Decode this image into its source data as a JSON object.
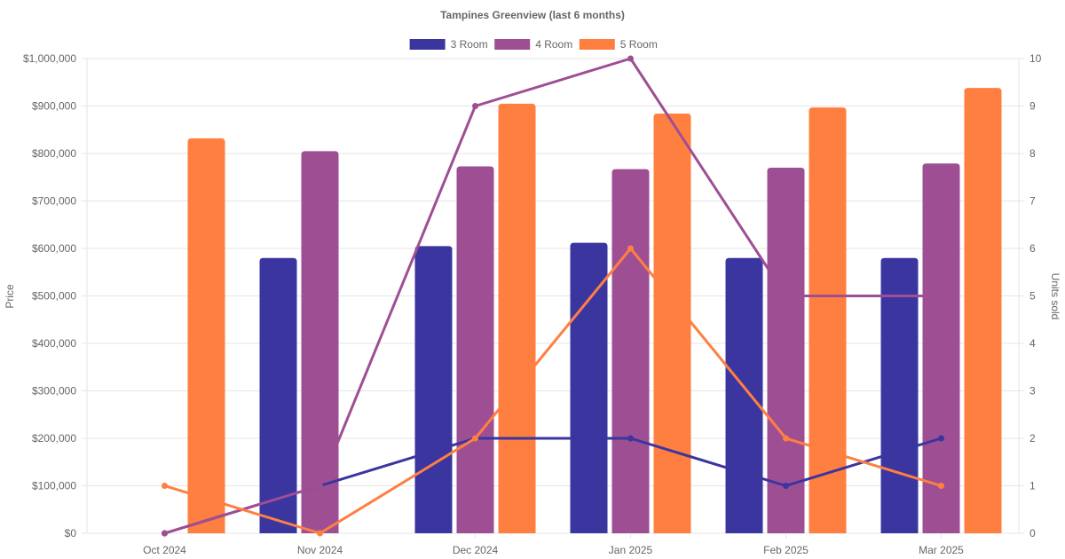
{
  "chart_data": {
    "type": "bar",
    "title": "Tampines Greenview (last 6 months)",
    "categories": [
      "Oct 2024",
      "Nov 2024",
      "Dec 2024",
      "Jan 2025",
      "Feb 2025",
      "Mar 2025"
    ],
    "y_left": {
      "label": "Price",
      "range": [
        0,
        1000000
      ],
      "ticks": [
        "$0",
        "$100,000",
        "$200,000",
        "$300,000",
        "$400,000",
        "$500,000",
        "$600,000",
        "$700,000",
        "$800,000",
        "$900,000",
        "$1,000,000"
      ]
    },
    "y_right": {
      "label": "Units sold",
      "range": [
        0,
        10
      ],
      "ticks": [
        "0",
        "1",
        "2",
        "3",
        "4",
        "5",
        "6",
        "7",
        "8",
        "9",
        "10"
      ]
    },
    "grid": true,
    "legend_position": "top-center",
    "series": [
      {
        "name": "3 Room",
        "color": "#3b35a0",
        "price": [
          null,
          580000,
          605000,
          612000,
          580000,
          580000
        ],
        "units_sold": [
          0,
          1,
          2,
          2,
          1,
          2
        ]
      },
      {
        "name": "4 Room",
        "color": "#9e4f94",
        "price": [
          null,
          805000,
          773000,
          767000,
          770000,
          779000
        ],
        "units_sold": [
          0,
          1,
          9,
          10,
          5,
          5
        ]
      },
      {
        "name": "5 Room",
        "color": "#ff7f41",
        "price": [
          832000,
          null,
          905000,
          884000,
          897000,
          938000
        ],
        "units_sold": [
          1,
          0,
          2,
          6,
          2,
          1
        ]
      }
    ]
  }
}
